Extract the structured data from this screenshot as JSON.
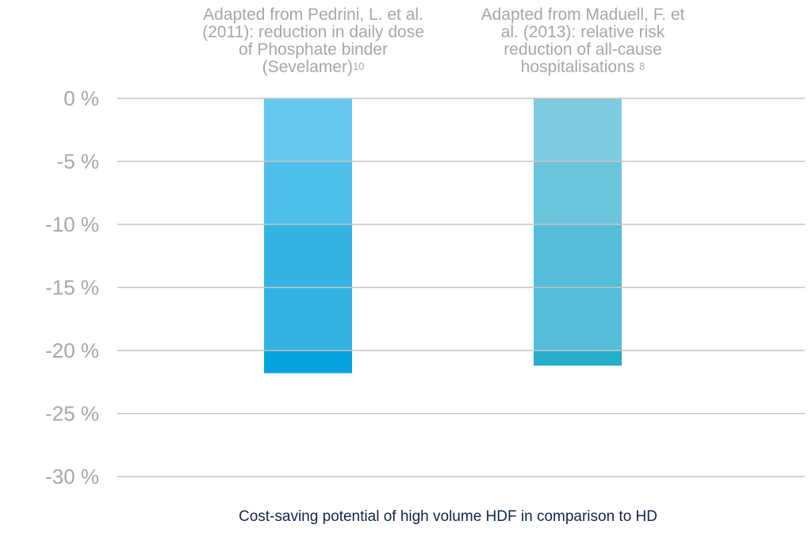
{
  "chart_data": {
    "type": "bar",
    "categories": [
      "Adapted from Pedrini, L. et al. (2011): reduction in daily dose of Phosphate binder (Sevelamer)",
      "Adapted from Maduell, F. et al. (2013): relative risk reduction of all-cause hospitalisations"
    ],
    "annotations": [
      {
        "lines": [
          "Adapted from Pedrini, L. et al.",
          "(2011): reduction in daily dose",
          "of Phosphate binder",
          "(Sevelamer)"
        ],
        "ref": "10"
      },
      {
        "lines": [
          "Adapted from Maduell, F. et",
          "al. (2013): relative risk",
          "reduction of all-cause",
          "hospitalisations"
        ],
        "ref": "8"
      }
    ],
    "values": [
      -21.8,
      -21.2
    ],
    "xlabel": "Cost-saving potential of high volume HDF in comparison to HD",
    "ylabel": "",
    "ylim": [
      -30,
      0
    ],
    "yticks": [
      0,
      -5,
      -10,
      -15,
      -20,
      -25,
      -30
    ],
    "ytick_labels": [
      "0 %",
      "-5 %",
      "-10 %",
      "-15 %",
      "-20 %",
      "-25 %",
      "-30 %"
    ],
    "grid": true,
    "colors": {
      "bar1_bands": [
        "#66c8ec",
        "#4dbfea",
        "#32b3e3",
        "#04a3dd"
      ],
      "bar2_bands": [
        "#7fcde0",
        "#6ac5dc",
        "#54bdd7",
        "#27acca"
      ],
      "grid": "#c8c4c0",
      "tick_text": "#a7a7a7",
      "xlabel_text": "#14254b"
    }
  }
}
